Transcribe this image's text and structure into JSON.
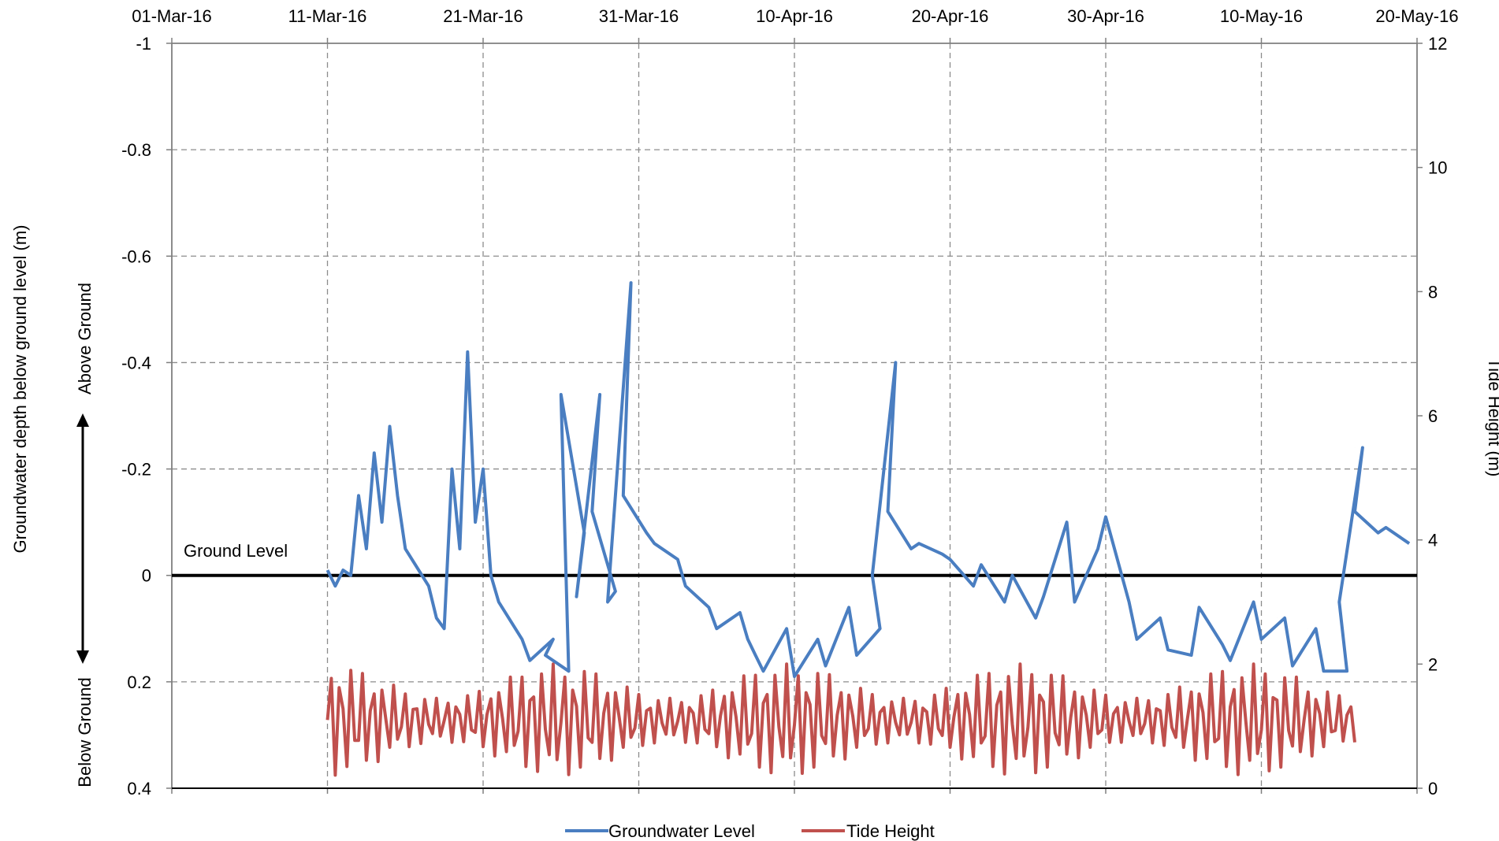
{
  "chart_data": {
    "type": "line",
    "title": "",
    "y_left_label": "Groundwater depth below ground level (m)",
    "y_left_above": "Above Ground",
    "y_left_below": "Below Ground",
    "y_right_label": "Tide Height (m)",
    "ground_level_label": "Ground Level",
    "x_ticks": [
      "01-Mar-16",
      "11-Mar-16",
      "21-Mar-16",
      "31-Mar-16",
      "10-Apr-16",
      "20-Apr-16",
      "30-Apr-16",
      "10-May-16",
      "20-May-16"
    ],
    "x_range": [
      "2016-03-01",
      "2016-05-20"
    ],
    "y_left_ticks": [
      "-1",
      "-0.8",
      "-0.6",
      "-0.4",
      "-0.2",
      "0",
      "0.2",
      "0.4"
    ],
    "y_left_range": [
      -1,
      0.4
    ],
    "y_left_inverted": true,
    "y_right_ticks": [
      "0",
      "2",
      "4",
      "6",
      "8",
      "10",
      "12"
    ],
    "y_right_range": [
      0,
      12
    ],
    "grid": true,
    "legend_position": "bottom",
    "colors": {
      "groundwater": "#4A7EC1",
      "tide": "#C0504D",
      "ground_line": "#000000",
      "grid": "#8C8C8C"
    },
    "series": [
      {
        "name": "Groundwater Level",
        "axis": "left",
        "points": [
          [
            "2016-03-11",
            -0.01
          ],
          [
            "2016-03-11",
            0.02
          ],
          [
            "2016-03-12",
            -0.01
          ],
          [
            "2016-03-12",
            0.0
          ],
          [
            "2016-03-13",
            -0.15
          ],
          [
            "2016-03-13",
            -0.05
          ],
          [
            "2016-03-14",
            -0.23
          ],
          [
            "2016-03-14",
            -0.1
          ],
          [
            "2016-03-15",
            -0.28
          ],
          [
            "2016-03-15",
            -0.15
          ],
          [
            "2016-03-16",
            -0.05
          ],
          [
            "2016-03-17",
            0.02
          ],
          [
            "2016-03-18",
            0.08
          ],
          [
            "2016-03-18",
            0.1
          ],
          [
            "2016-03-19",
            -0.2
          ],
          [
            "2016-03-19",
            -0.05
          ],
          [
            "2016-03-20",
            -0.42
          ],
          [
            "2016-03-20",
            -0.1
          ],
          [
            "2016-03-21",
            -0.2
          ],
          [
            "2016-03-21",
            0.0
          ],
          [
            "2016-03-22",
            0.05
          ],
          [
            "2016-03-23",
            0.12
          ],
          [
            "2016-03-24",
            0.16
          ],
          [
            "2016-03-25",
            0.12
          ],
          [
            "2016-03-25",
            0.15
          ],
          [
            "2016-03-26",
            0.18
          ],
          [
            "2016-03-26",
            -0.34
          ],
          [
            "2016-03-27",
            -0.08
          ],
          [
            "2016-03-27",
            0.04
          ],
          [
            "2016-03-28",
            -0.34
          ],
          [
            "2016-03-28",
            -0.12
          ],
          [
            "2016-03-29",
            0.03
          ],
          [
            "2016-03-29",
            0.05
          ],
          [
            "2016-03-30",
            -0.55
          ],
          [
            "2016-03-30",
            -0.15
          ],
          [
            "2016-03-31",
            -0.08
          ],
          [
            "2016-04-01",
            -0.06
          ],
          [
            "2016-04-02",
            -0.03
          ],
          [
            "2016-04-03",
            0.02
          ],
          [
            "2016-04-04",
            0.06
          ],
          [
            "2016-04-05",
            0.1
          ],
          [
            "2016-04-06",
            0.07
          ],
          [
            "2016-04-07",
            0.12
          ],
          [
            "2016-04-07",
            0.15
          ],
          [
            "2016-04-08",
            0.18
          ],
          [
            "2016-04-09",
            0.1
          ],
          [
            "2016-04-10",
            0.19
          ],
          [
            "2016-04-11",
            0.12
          ],
          [
            "2016-04-12",
            0.17
          ],
          [
            "2016-04-13",
            0.06
          ],
          [
            "2016-04-14",
            0.15
          ],
          [
            "2016-04-15",
            0.1
          ],
          [
            "2016-04-15",
            0.0
          ],
          [
            "2016-04-16",
            -0.4
          ],
          [
            "2016-04-16",
            -0.12
          ],
          [
            "2016-04-17",
            -0.05
          ],
          [
            "2016-04-18",
            -0.06
          ],
          [
            "2016-04-19",
            -0.04
          ],
          [
            "2016-04-20",
            -0.03
          ],
          [
            "2016-04-21",
            0.02
          ],
          [
            "2016-04-22",
            -0.02
          ],
          [
            "2016-04-23",
            0.05
          ],
          [
            "2016-04-24",
            0.0
          ],
          [
            "2016-04-25",
            0.08
          ],
          [
            "2016-04-26",
            0.04
          ],
          [
            "2016-04-27",
            -0.1
          ],
          [
            "2016-04-28",
            0.05
          ],
          [
            "2016-04-29",
            -0.05
          ],
          [
            "2016-04-30",
            -0.11
          ],
          [
            "2016-05-01",
            0.05
          ],
          [
            "2016-05-02",
            0.12
          ],
          [
            "2016-05-03",
            0.08
          ],
          [
            "2016-05-04",
            0.14
          ],
          [
            "2016-05-05",
            0.15
          ],
          [
            "2016-05-06",
            0.06
          ],
          [
            "2016-05-07",
            0.13
          ],
          [
            "2016-05-08",
            0.16
          ],
          [
            "2016-05-09",
            0.05
          ],
          [
            "2016-05-10",
            0.12
          ],
          [
            "2016-05-11",
            0.08
          ],
          [
            "2016-05-12",
            0.17
          ],
          [
            "2016-05-13",
            0.1
          ],
          [
            "2016-05-14",
            0.18
          ],
          [
            "2016-05-15",
            0.18
          ],
          [
            "2016-05-15",
            0.05
          ],
          [
            "2016-05-16",
            -0.24
          ],
          [
            "2016-05-16",
            -0.12
          ],
          [
            "2016-05-17",
            -0.08
          ],
          [
            "2016-05-18",
            -0.09
          ],
          [
            "2016-05-19",
            -0.06
          ]
        ]
      },
      {
        "name": "Tide Height",
        "axis": "right",
        "points": []
      }
    ]
  },
  "legend": [
    {
      "label": "Groundwater Level"
    },
    {
      "label": "Tide Height"
    }
  ]
}
